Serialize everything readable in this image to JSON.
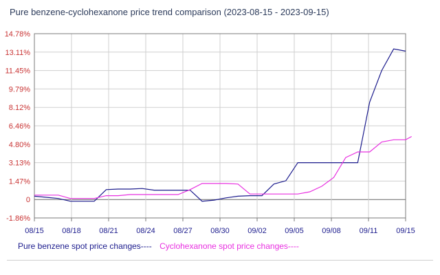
{
  "title": "Pure benzene-cyclohexanone price trend comparison (2023-08-15 - 2023-09-15)",
  "chart_data": {
    "type": "line",
    "title": "Pure benzene-cyclohexanone price trend comparison (2023-08-15 - 2023-09-15)",
    "xlabel": "",
    "ylabel": "",
    "x_ticks": [
      "08/15",
      "08/18",
      "08/21",
      "08/24",
      "08/27",
      "08/30",
      "09/02",
      "09/05",
      "09/08",
      "09/11",
      "09/15"
    ],
    "y_ticks": [
      "14.78%",
      "13.11%",
      "11.45%",
      "9.79%",
      "8.12%",
      "6.46%",
      "4.80%",
      "3.13%",
      "1.47%",
      "0",
      "-1.86%"
    ],
    "ylim": [
      -1.86,
      14.78
    ],
    "grid": true,
    "legend_position": "bottom-left",
    "series": [
      {
        "name": "Pure benzene spot price changes----",
        "color": "#1a1a8c",
        "points": [
          [
            "08/15",
            0.1
          ],
          [
            "08/16",
            0.0
          ],
          [
            "08/17",
            -0.1
          ],
          [
            "08/18",
            -0.35
          ],
          [
            "08/19",
            -0.35
          ],
          [
            "08/20",
            -0.35
          ],
          [
            "08/21",
            0.7
          ],
          [
            "08/22",
            0.75
          ],
          [
            "08/23",
            0.75
          ],
          [
            "08/24",
            0.8
          ],
          [
            "08/25",
            0.65
          ],
          [
            "08/26",
            0.65
          ],
          [
            "08/27",
            0.65
          ],
          [
            "08/28",
            0.65
          ],
          [
            "08/29",
            -0.35
          ],
          [
            "08/30",
            -0.25
          ],
          [
            "08/31",
            -0.05
          ],
          [
            "09/01",
            0.1
          ],
          [
            "09/02",
            0.15
          ],
          [
            "09/03",
            0.15
          ],
          [
            "09/04",
            1.2
          ],
          [
            "09/05",
            1.5
          ],
          [
            "09/06",
            3.13
          ],
          [
            "09/07",
            3.13
          ],
          [
            "09/08",
            3.13
          ],
          [
            "09/09",
            3.13
          ],
          [
            "09/10",
            3.13
          ],
          [
            "09/11",
            3.13
          ],
          [
            "09/12",
            8.6
          ],
          [
            "09/13",
            11.45
          ],
          [
            "09/14",
            13.4
          ],
          [
            "09/15",
            13.2
          ]
        ]
      },
      {
        "name": "Cyclohexanone spot price changes----",
        "color": "#e830e0",
        "points": [
          [
            "08/15",
            0.2
          ],
          [
            "08/16",
            0.2
          ],
          [
            "08/17",
            0.2
          ],
          [
            "08/18",
            -0.1
          ],
          [
            "08/19",
            -0.1
          ],
          [
            "08/20",
            -0.1
          ],
          [
            "08/21",
            0.15
          ],
          [
            "08/22",
            0.15
          ],
          [
            "08/23",
            0.25
          ],
          [
            "08/24",
            0.25
          ],
          [
            "08/25",
            0.25
          ],
          [
            "08/26",
            0.25
          ],
          [
            "08/27",
            0.25
          ],
          [
            "08/28",
            0.7
          ],
          [
            "08/29",
            1.25
          ],
          [
            "08/30",
            1.25
          ],
          [
            "08/31",
            1.25
          ],
          [
            "09/01",
            1.2
          ],
          [
            "09/02",
            0.3
          ],
          [
            "09/03",
            0.3
          ],
          [
            "09/04",
            0.3
          ],
          [
            "09/05",
            0.3
          ],
          [
            "09/06",
            0.3
          ],
          [
            "09/07",
            0.5
          ],
          [
            "09/08",
            1.0
          ],
          [
            "09/09",
            1.8
          ],
          [
            "09/10",
            3.6
          ],
          [
            "09/11",
            4.1
          ],
          [
            "09/12",
            4.1
          ],
          [
            "09/13",
            5.0
          ],
          [
            "09/14",
            5.2
          ],
          [
            "09/15",
            5.2
          ],
          [
            "09/15b",
            5.5
          ]
        ]
      }
    ]
  },
  "colors": {
    "grid": "#cfcfcf",
    "axis": "#7a7a7a",
    "y_tick_text": "#c83232",
    "x_tick_text": "#1a1a8c",
    "zero_line": "#666666"
  }
}
